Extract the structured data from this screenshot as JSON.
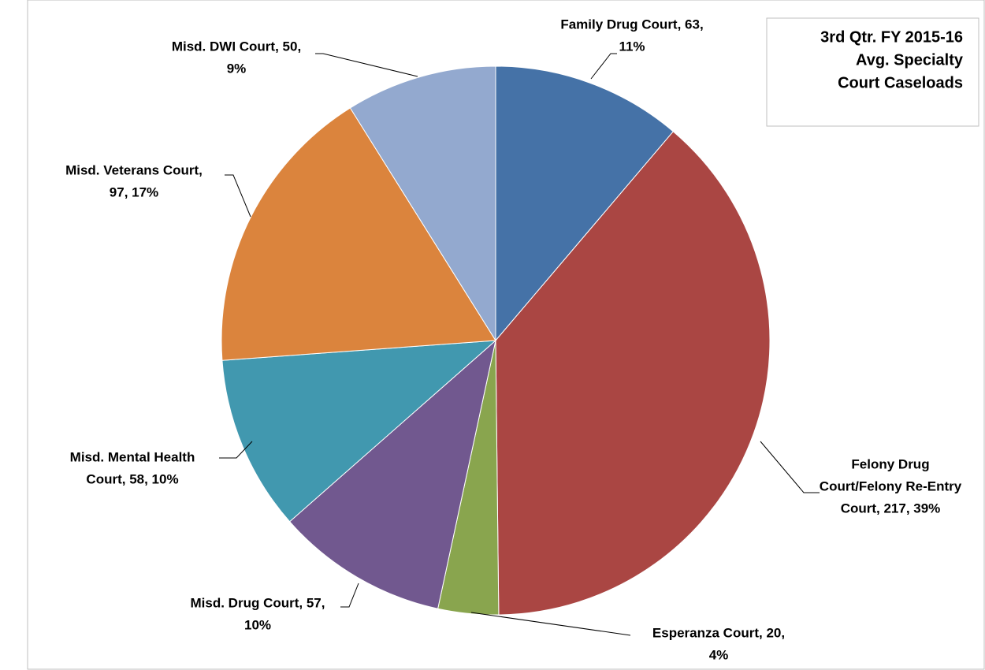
{
  "chart_data": {
    "type": "pie",
    "title": [
      "3rd Qtr. FY 2015-16",
      "Avg. Specialty",
      "Court Caseloads"
    ],
    "categories": [
      "Family Drug Court",
      "Felony Drug Court/Felony Re-Entry Court",
      "Esperanza Court",
      "Misd. Drug Court",
      "Misd. Mental Health Court",
      "Misd. Veterans Court",
      "Misd. DWI Court"
    ],
    "values": [
      63,
      217,
      20,
      57,
      58,
      97,
      50
    ],
    "value_labels": [
      [
        "Family Drug Court, 63,",
        "11%"
      ],
      [
        "Felony Drug",
        "Court/Felony Re-Entry",
        "Court, 217, 39%"
      ],
      [
        "Esperanza Court, 20,",
        "4%"
      ],
      [
        "Misd. Drug Court, 57,",
        "10%"
      ],
      [
        "Misd. Mental Health",
        "Court, 58, 10%"
      ],
      [
        "Misd. Veterans Court,",
        "97, 17%"
      ],
      [
        "Misd. DWI Court, 50,",
        "9%"
      ]
    ],
    "colors": [
      "#4572a7",
      "#aa4643",
      "#89a54e",
      "#71588f",
      "#4198af",
      "#db843d",
      "#93a9cf"
    ]
  }
}
